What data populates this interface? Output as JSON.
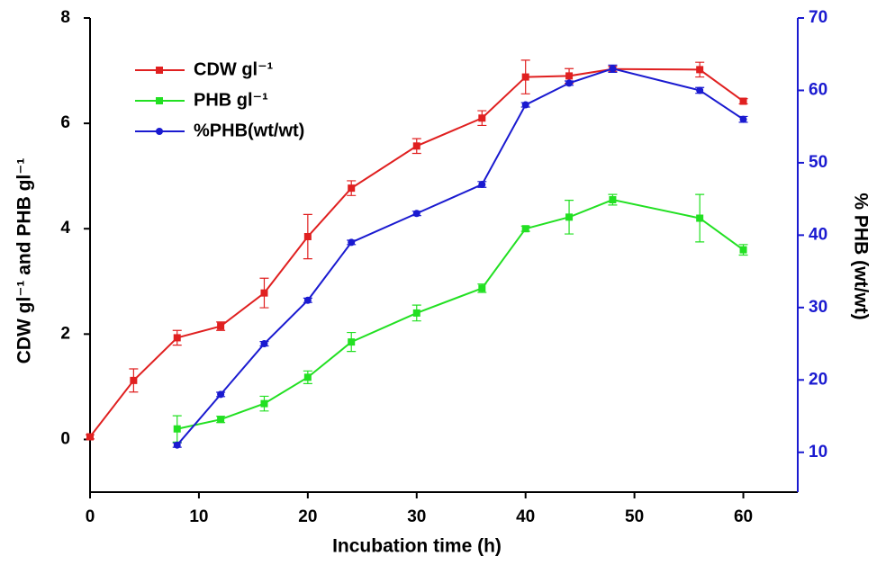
{
  "chart_data": {
    "type": "line",
    "x_label": "Incubation time (h)",
    "y_label": "CDW gl⁻¹ and PHB gl⁻¹",
    "y2_label": "% PHB (wt/wt)",
    "xlim": [
      0,
      65
    ],
    "xticks": [
      0,
      10,
      20,
      30,
      40,
      50,
      60
    ],
    "ylim": [
      -1,
      8
    ],
    "yticks": [
      0,
      2,
      4,
      6,
      8
    ],
    "y2lim": [
      4.5,
      70
    ],
    "y2ticks": [
      10,
      20,
      30,
      40,
      50,
      60,
      70
    ],
    "y2_color": "#1a1ad0",
    "legend": "upper left",
    "series": [
      {
        "name": "CDW gl⁻¹",
        "color": "#e02020",
        "marker": "square",
        "x": [
          0,
          4,
          8,
          12,
          16,
          20,
          24,
          30,
          36,
          40,
          44,
          48,
          56,
          60
        ],
        "values": [
          0.05,
          1.12,
          1.93,
          2.15,
          2.78,
          3.85,
          4.77,
          5.57,
          6.1,
          6.88,
          6.9,
          7.03,
          7.02,
          6.42
        ],
        "errors": [
          0.04,
          0.22,
          0.14,
          0.08,
          0.28,
          0.42,
          0.14,
          0.14,
          0.14,
          0.32,
          0.14,
          0.05,
          0.14,
          0.05
        ]
      },
      {
        "name": "PHB gl⁻¹",
        "color": "#22e022",
        "marker": "square",
        "x": [
          8,
          12,
          16,
          20,
          24,
          30,
          36,
          40,
          44,
          48,
          56,
          60
        ],
        "values": [
          0.2,
          0.38,
          0.68,
          1.18,
          1.85,
          2.4,
          2.87,
          4.0,
          4.22,
          4.55,
          4.2,
          3.6
        ],
        "errors": [
          0.25,
          0.06,
          0.14,
          0.12,
          0.18,
          0.15,
          0.08,
          0.05,
          0.32,
          0.1,
          0.45,
          0.1
        ]
      },
      {
        "name": "%PHB(wt/wt)",
        "color": "#1a1ad0",
        "marker": "circle",
        "axis": "y2",
        "x": [
          8,
          12,
          16,
          20,
          24,
          30,
          36,
          40,
          44,
          48,
          56,
          60
        ],
        "values": [
          11,
          18,
          25,
          31,
          39,
          43,
          47,
          58,
          61,
          63,
          60,
          56
        ],
        "errors": [
          0.3,
          0.3,
          0.3,
          0.3,
          0.3,
          0.3,
          0.4,
          0.3,
          0.3,
          0.5,
          0.4,
          0.4
        ]
      }
    ]
  }
}
